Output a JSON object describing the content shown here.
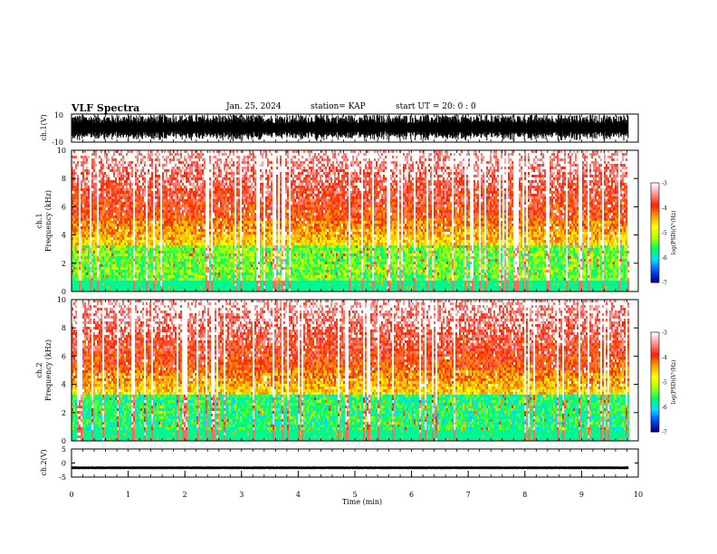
{
  "header": {
    "title": "VLF Spectra",
    "date": "Jan. 25, 2024",
    "station": "station= KAP",
    "start": "start  UT  =   20: 0  : 0"
  },
  "chart_data": [
    {
      "type": "line",
      "panel": "waveform-ch1",
      "ylabel": "ch.1(V)",
      "ylim": [
        -10,
        10
      ],
      "ytick_labels": [
        "-10",
        "10"
      ],
      "xlim": [
        0,
        10
      ],
      "data_extent_x": 9.83,
      "amplitude_range": [
        -9.5,
        9.5
      ]
    },
    {
      "type": "heatmap",
      "panel": "spectrogram-ch1",
      "ylabel": "ch.1\nFrequency  (kHz)",
      "ylim": [
        0,
        10
      ],
      "ytick_labels": [
        "0",
        "2",
        "4",
        "6",
        "8",
        "10"
      ],
      "xlim": [
        0,
        10
      ],
      "data_extent_x": 9.83,
      "colorbar": {
        "label": "log(PSD)(V²/Hz)",
        "range": [
          -7,
          -3
        ],
        "tick_labels": [
          "-3",
          "-4",
          "-5",
          "-6",
          "-7"
        ],
        "colors": [
          "#000090",
          "#0050ff",
          "#00e0ff",
          "#00ff60",
          "#b0ff00",
          "#ffff00",
          "#ffa000",
          "#ff2000",
          "#ff9090",
          "#ffffff"
        ]
      }
    },
    {
      "type": "heatmap",
      "panel": "spectrogram-ch2",
      "ylabel": "ch.2\nFrequency  (kHz)",
      "ylim": [
        0,
        10
      ],
      "ytick_labels": [
        "0",
        "2",
        "4",
        "6",
        "8",
        "10"
      ],
      "xlim": [
        0,
        10
      ],
      "data_extent_x": 9.83,
      "colorbar": {
        "label": "log(PSD)(V²/Hz)",
        "range": [
          -7,
          -3
        ],
        "tick_labels": [
          "-3",
          "-4",
          "-5",
          "-6",
          "-7"
        ],
        "colors": [
          "#000090",
          "#0050ff",
          "#00e0ff",
          "#00ff60",
          "#b0ff00",
          "#ffff00",
          "#ffa000",
          "#ff2000",
          "#ff9090",
          "#ffffff"
        ]
      }
    },
    {
      "type": "line",
      "panel": "waveform-ch2",
      "ylabel": "ch.2(V)",
      "ylim": [
        -5,
        5
      ],
      "ytick_labels": [
        "-5",
        "0",
        "5"
      ],
      "xlim": [
        0,
        10
      ],
      "data_extent_x": 9.83,
      "amplitude_range": [
        -2.1,
        -1.3
      ],
      "xlabel": "Time  (min)",
      "xtick_labels": [
        "0",
        "1",
        "2",
        "3",
        "4",
        "5",
        "6",
        "7",
        "8",
        "9",
        "10"
      ]
    }
  ]
}
